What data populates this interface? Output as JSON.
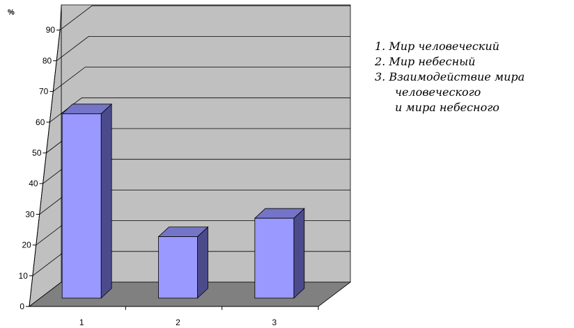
{
  "chart_data": {
    "type": "bar",
    "ylabel": "%",
    "categories": [
      "1",
      "2",
      "3"
    ],
    "values": [
      60,
      20,
      26
    ],
    "ylim": [
      0,
      90
    ],
    "yticks": [
      0,
      10,
      20,
      30,
      40,
      50,
      60,
      70,
      80,
      90
    ],
    "grid": true,
    "legend_position": "right",
    "colors": {
      "bar_front": "#9999ff",
      "bar_side": "#4b4b8c",
      "bar_top": "#7474c8",
      "wall": "#c0c0c0",
      "floor": "#808080",
      "gridline": "#000000"
    }
  },
  "legend": {
    "items": [
      {
        "lines": [
          "1. Мир человеческий"
        ]
      },
      {
        "lines": [
          "2. Мир небесный"
        ]
      },
      {
        "lines": [
          "3. Взаимодействие мира",
          "человеческого",
          "и мира небесного"
        ]
      }
    ]
  }
}
